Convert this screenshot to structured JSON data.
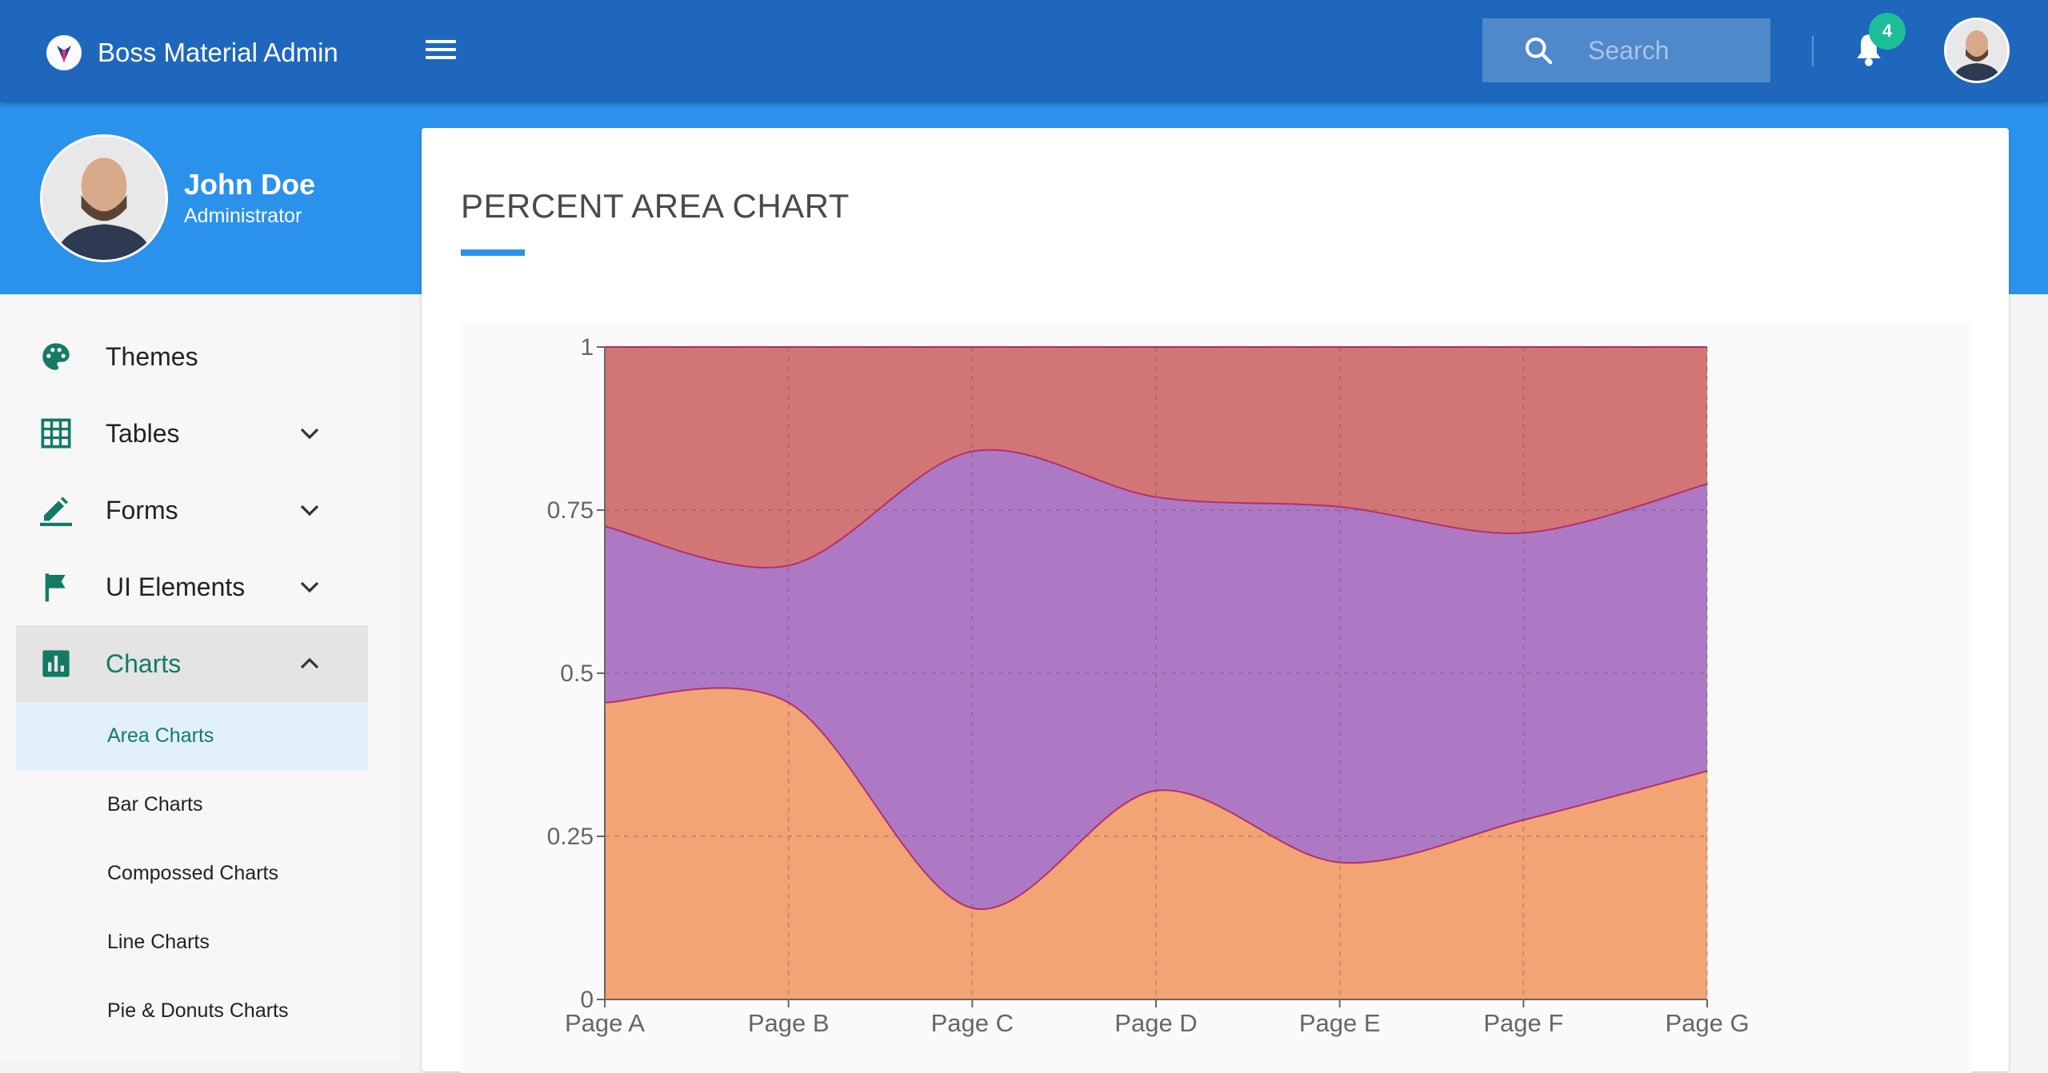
{
  "app": {
    "title": "Boss Material Admin"
  },
  "search": {
    "placeholder": "Search"
  },
  "notifications": {
    "count": "4"
  },
  "user": {
    "name": "John Doe",
    "role": "Administrator"
  },
  "sidebar": {
    "items": [
      {
        "label": "Themes",
        "icon": "palette-icon"
      },
      {
        "label": "Tables",
        "icon": "grid-icon",
        "expandable": true
      },
      {
        "label": "Forms",
        "icon": "pencil-icon",
        "expandable": true
      },
      {
        "label": "UI Elements",
        "icon": "flag-icon",
        "expandable": true
      },
      {
        "label": "Charts",
        "icon": "bar-chart-icon",
        "expandable": true,
        "expanded": true
      }
    ],
    "charts_sub": [
      {
        "label": "Area Charts",
        "active": true
      },
      {
        "label": "Bar Charts"
      },
      {
        "label": "Compossed Charts"
      },
      {
        "label": "Line Charts"
      },
      {
        "label": "Pie & Donuts Charts"
      }
    ]
  },
  "main": {
    "title": "PERCENT AREA CHART"
  },
  "colors": {
    "appbar": "#1e67bd",
    "banner": "#2b92ec",
    "accent": "#137a66",
    "badge": "#1ebd9a"
  },
  "chart_data": {
    "type": "area",
    "stacked": "percent",
    "title": "",
    "xlabel": "",
    "ylabel": "",
    "categories": [
      "Page A",
      "Page B",
      "Page C",
      "Page D",
      "Page E",
      "Page F",
      "Page G"
    ],
    "yticks": [
      "0",
      "0.25",
      "0.5",
      "0.75",
      "1"
    ],
    "ylim": [
      0,
      1
    ],
    "grid": true,
    "series": [
      {
        "values": [
          0.455,
          0.455,
          0.14,
          0.32,
          0.21,
          0.275,
          0.35
        ],
        "color": "#f2a474"
      },
      {
        "values": [
          0.27,
          0.21,
          0.7,
          0.45,
          0.545,
          0.44,
          0.44
        ],
        "color": "#ae79c4"
      },
      {
        "values": [
          0.275,
          0.335,
          0.16,
          0.23,
          0.245,
          0.285,
          0.21
        ],
        "color": "#d27576"
      }
    ]
  }
}
